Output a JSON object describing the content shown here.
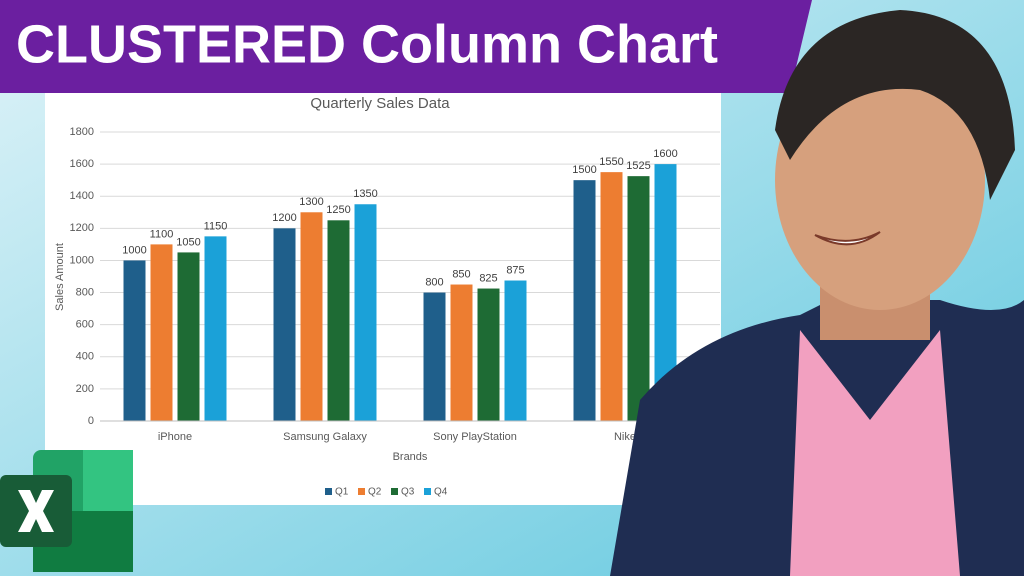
{
  "banner": "CLUSTERED Column Chart",
  "chart_data": {
    "type": "bar",
    "title": "Quarterly Sales Data",
    "x_label": "Brands",
    "y_label": "Sales Amount",
    "categories": [
      "iPhone",
      "Samsung Galaxy",
      "Sony PlayStation",
      "Nike"
    ],
    "series": [
      {
        "name": "Q1",
        "color": "#1f5f8b",
        "values": [
          1000,
          1200,
          800,
          1500
        ]
      },
      {
        "name": "Q2",
        "color": "#ed7d31",
        "values": [
          1100,
          1300,
          850,
          1550
        ]
      },
      {
        "name": "Q3",
        "color": "#1e6b34",
        "values": [
          1050,
          1250,
          825,
          1525
        ]
      },
      {
        "name": "Q4",
        "color": "#1ba1d8",
        "values": [
          1150,
          1350,
          875,
          1600
        ]
      }
    ],
    "ylim": [
      0,
      1800
    ],
    "yticks": [
      0,
      200,
      400,
      600,
      800,
      1000,
      1200,
      1400,
      1600,
      1800
    ],
    "grid": true,
    "data_labels": true,
    "legend": "bottom"
  }
}
